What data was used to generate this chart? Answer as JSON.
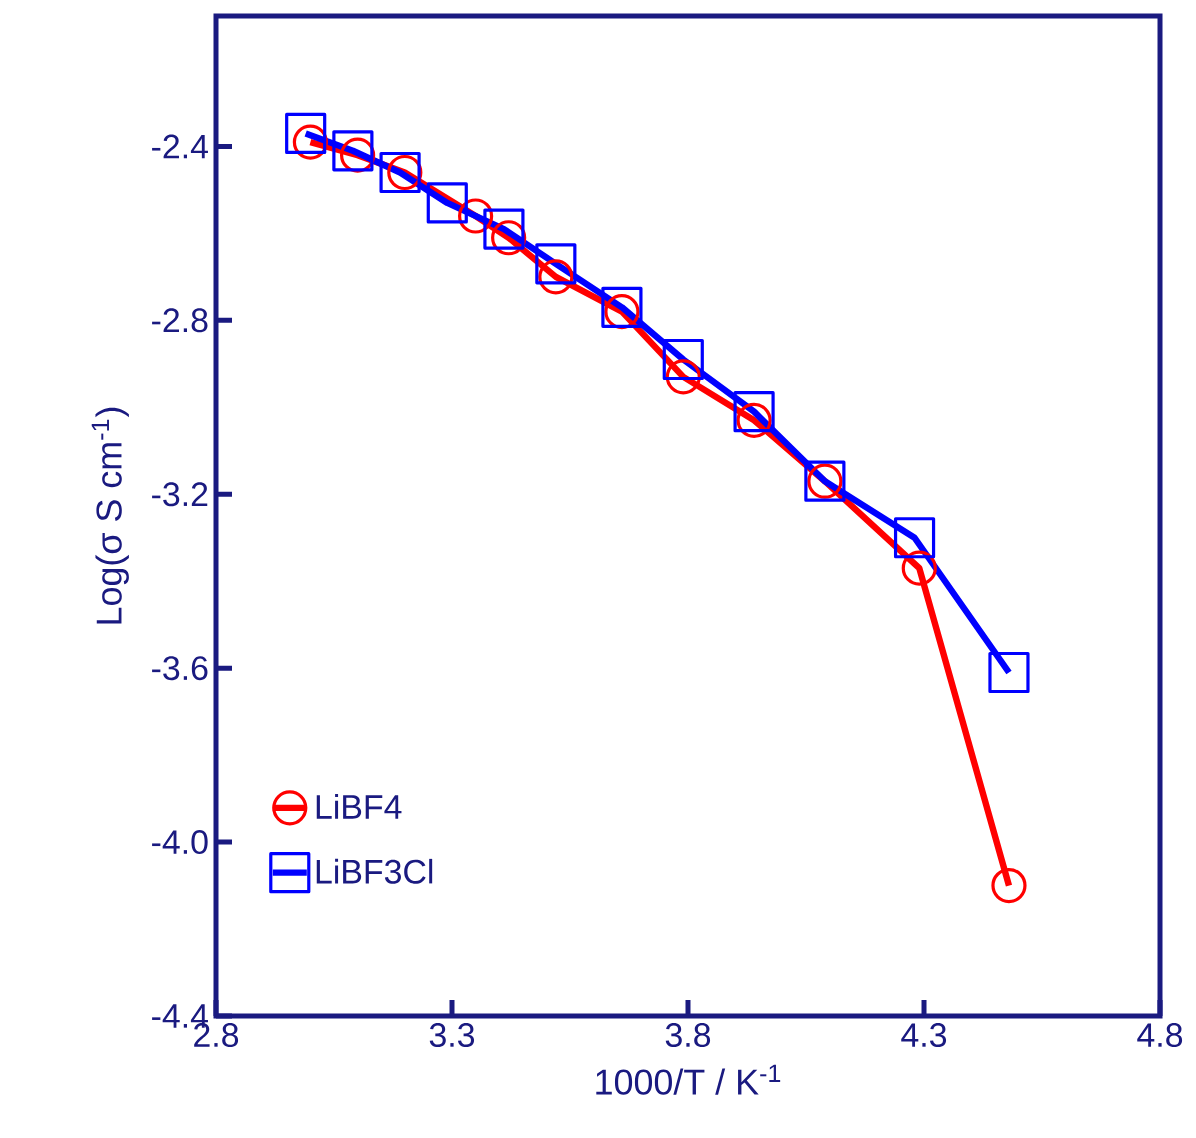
{
  "chart_data": {
    "type": "line",
    "xlabel": "1000/T / K$^{-1}$",
    "ylabel": "Log(σ S cm$^{-1}$)",
    "xlim": [
      2.8,
      4.8
    ],
    "xticks": [
      2.8,
      3.3,
      3.8,
      4.3,
      4.8
    ],
    "ylim": [
      -4.4,
      -2.1
    ],
    "yticks": [
      -4.4,
      {
        "value": -4.0,
        "label": "-4.0"
      },
      -3.6,
      -3.2,
      -2.8,
      -2.4
    ],
    "grid": false,
    "legend": "bottom left",
    "series": [
      {
        "name": "LiBF4",
        "color": "#ff0000",
        "marker": "circle",
        "x": [
          3.0,
          3.1,
          3.2,
          3.35,
          3.42,
          3.52,
          3.66,
          3.79,
          3.94,
          4.09,
          4.29,
          4.48
        ],
        "values": [
          -2.39,
          -2.42,
          -2.46,
          -2.56,
          -2.61,
          -2.7,
          -2.78,
          -2.93,
          -3.03,
          -3.17,
          -3.37,
          -4.1
        ]
      },
      {
        "name": "LiBF3Cl",
        "color": "#0000ff",
        "marker": "square",
        "x": [
          2.99,
          3.09,
          3.19,
          3.29,
          3.41,
          3.52,
          3.66,
          3.79,
          3.94,
          4.09,
          4.28,
          4.48
        ],
        "values": [
          -2.37,
          -2.41,
          -2.46,
          -2.53,
          -2.59,
          -2.67,
          -2.77,
          -2.89,
          -3.01,
          -3.17,
          -3.3,
          -3.61
        ]
      }
    ]
  }
}
